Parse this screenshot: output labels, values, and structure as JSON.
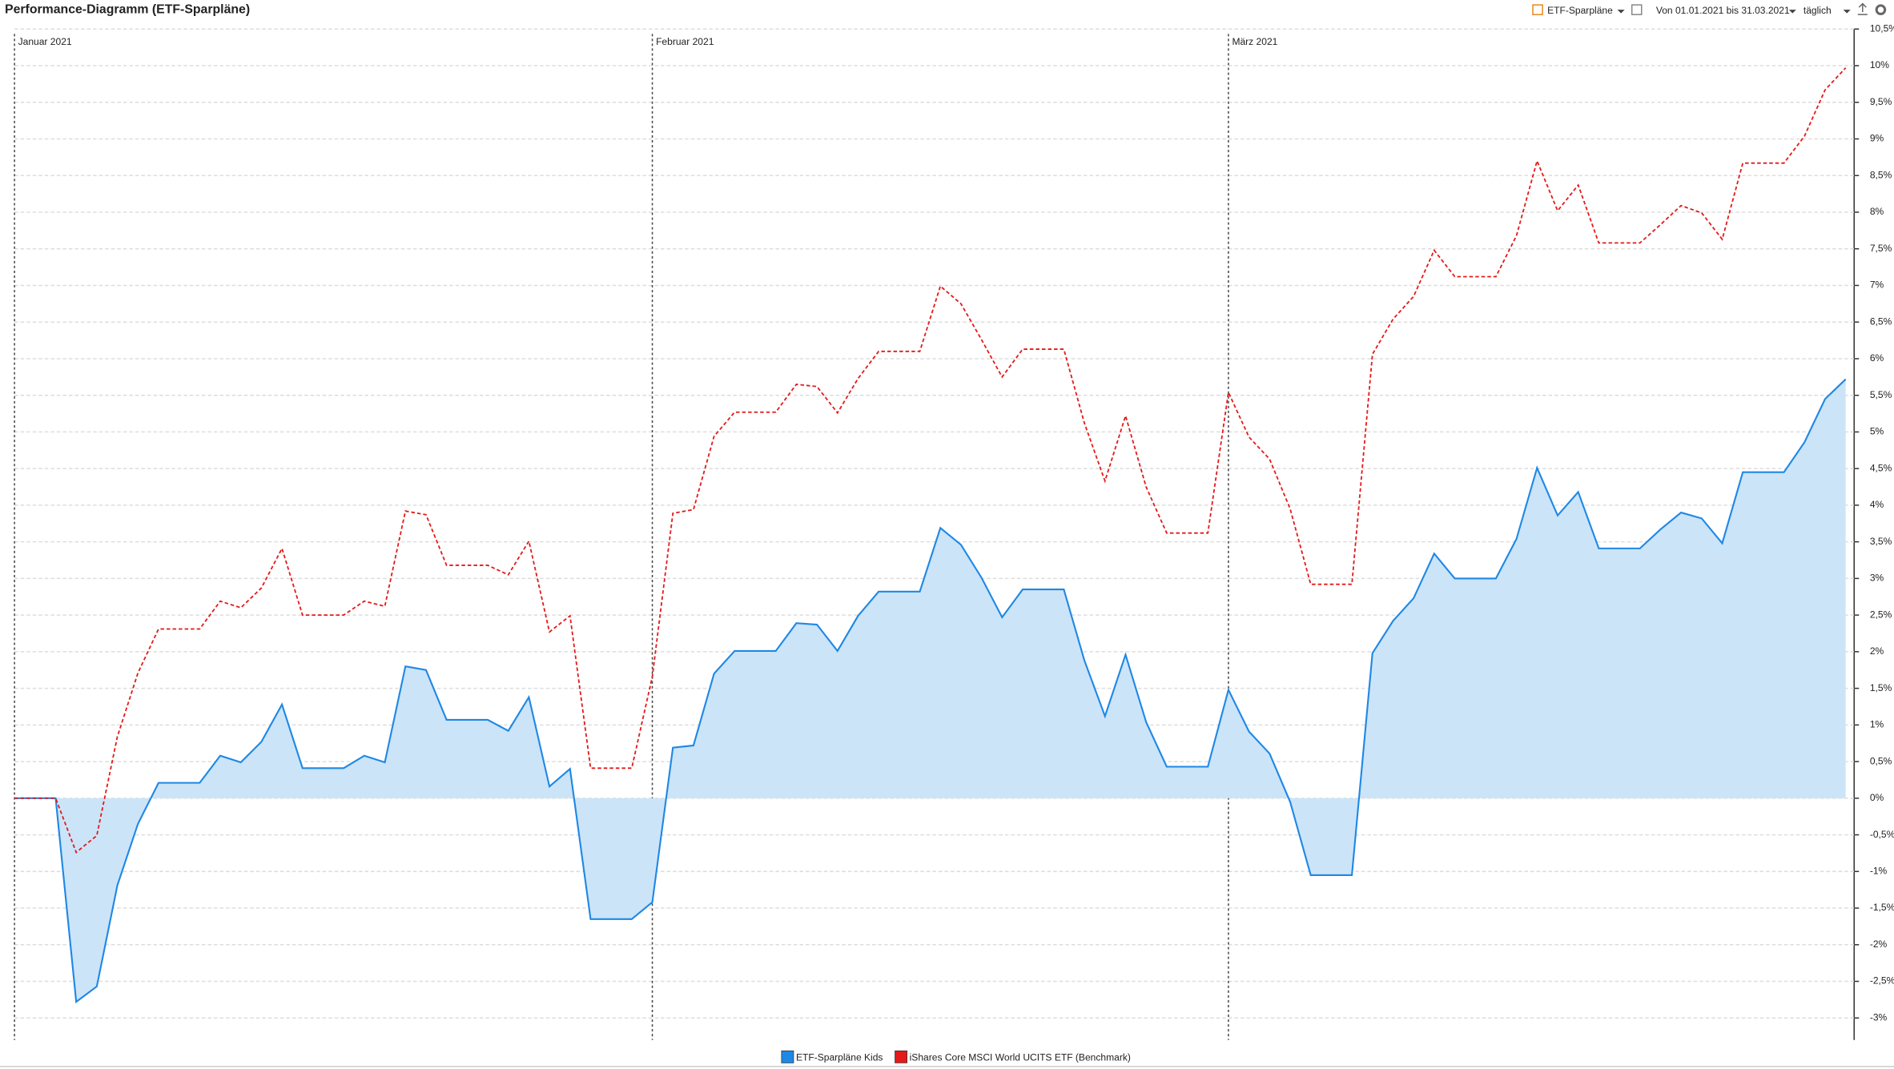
{
  "header": {
    "title": "Performance-Diagramm (ETF-Sparpläne)",
    "portfolio": "ETF-Sparpläne",
    "period": "Von 01.01.2021 bis 31.03.2021",
    "interval": "täglich"
  },
  "chart_data": {
    "type": "line",
    "categories": [
      "Januar 2021",
      null,
      null,
      null,
      null,
      null,
      null,
      null,
      null,
      null,
      null,
      null,
      null,
      null,
      null,
      null,
      null,
      null,
      null,
      null,
      null,
      null,
      null,
      null,
      null,
      null,
      null,
      null,
      null,
      null,
      null,
      "Februar 2021",
      null,
      null,
      null,
      null,
      null,
      null,
      null,
      null,
      null,
      null,
      null,
      null,
      null,
      null,
      null,
      null,
      null,
      null,
      null,
      null,
      null,
      null,
      null,
      null,
      null,
      null,
      null,
      "März 2021",
      null,
      null,
      null,
      null,
      null,
      null,
      null,
      null,
      null,
      null,
      null,
      null,
      null,
      null,
      null,
      null,
      null,
      null,
      null,
      null,
      null,
      null,
      null,
      null,
      null,
      null,
      null,
      null,
      null,
      null
    ],
    "series": [
      {
        "name": "ETF-Sparpläne Kids",
        "color": "#1e88e5",
        "fill": "#cce4f8",
        "dashed": false,
        "values": [
          0,
          0,
          0,
          -2.78,
          -2.57,
          -1.19,
          -0.35,
          0.21,
          0.21,
          0.21,
          0.58,
          0.49,
          0.77,
          1.28,
          0.41,
          0.41,
          0.41,
          0.58,
          0.49,
          1.8,
          1.75,
          1.07,
          1.07,
          1.07,
          0.92,
          1.38,
          0.16,
          0.4,
          -1.65,
          -1.65,
          -1.65,
          -1.42,
          0.69,
          0.72,
          1.7,
          2.01,
          2.01,
          2.01,
          2.39,
          2.37,
          2.01,
          2.49,
          2.82,
          2.82,
          2.82,
          3.69,
          3.46,
          3.01,
          2.47,
          2.85,
          2.85,
          2.85,
          1.88,
          1.12,
          1.96,
          1.04,
          0.43,
          0.43,
          0.43,
          1.48,
          0.91,
          0.61,
          -0.05,
          -1.05,
          -1.05,
          -1.05,
          1.98,
          2.42,
          2.73,
          3.34,
          3.0,
          3.0,
          3.0,
          3.54,
          4.51,
          3.86,
          4.18,
          3.41,
          3.41,
          3.41,
          3.67,
          3.9,
          3.82,
          3.48,
          4.45,
          4.45,
          4.45,
          4.86,
          5.45,
          5.72
        ]
      },
      {
        "name": "iShares Core MSCI World UCITS ETF (Benchmark)",
        "color": "#e31a1a",
        "dashed": true,
        "values": [
          0,
          0,
          0,
          -0.74,
          -0.51,
          0.84,
          1.71,
          2.31,
          2.31,
          2.31,
          2.69,
          2.6,
          2.87,
          3.41,
          2.5,
          2.5,
          2.5,
          2.69,
          2.62,
          3.92,
          3.87,
          3.18,
          3.18,
          3.18,
          3.05,
          3.51,
          2.27,
          2.49,
          0.41,
          0.41,
          0.41,
          1.66,
          3.89,
          3.94,
          4.94,
          5.27,
          5.27,
          5.27,
          5.65,
          5.62,
          5.26,
          5.73,
          6.1,
          6.1,
          6.1,
          6.99,
          6.75,
          6.26,
          5.75,
          6.13,
          6.13,
          6.13,
          5.12,
          4.33,
          5.22,
          4.25,
          3.62,
          3.62,
          3.62,
          5.54,
          4.93,
          4.63,
          3.95,
          2.92,
          2.92,
          2.92,
          6.06,
          6.54,
          6.85,
          7.48,
          7.12,
          7.12,
          7.12,
          7.68,
          8.7,
          8.02,
          8.37,
          7.58,
          7.58,
          7.58,
          7.83,
          8.09,
          7.99,
          7.63,
          8.67,
          8.67,
          8.67,
          9.04,
          9.67,
          9.97
        ]
      }
    ],
    "ylim": [
      -3.3,
      10.5
    ],
    "yticks": [
      {
        "value": -3,
        "label": "-3%"
      },
      {
        "value": -2.5,
        "label": "-2,5%"
      },
      {
        "value": -2,
        "label": "-2%"
      },
      {
        "value": -1.5,
        "label": "-1,5%"
      },
      {
        "value": -1,
        "label": "-1%"
      },
      {
        "value": -0.5,
        "label": "-0,5%"
      },
      {
        "value": 0,
        "label": "0%"
      },
      {
        "value": 0.5,
        "label": "0,5%"
      },
      {
        "value": 1,
        "label": "1%"
      },
      {
        "value": 1.5,
        "label": "1,5%"
      },
      {
        "value": 2,
        "label": "2%"
      },
      {
        "value": 2.5,
        "label": "2,5%"
      },
      {
        "value": 3,
        "label": "3%"
      },
      {
        "value": 3.5,
        "label": "3,5%"
      },
      {
        "value": 4,
        "label": "4%"
      },
      {
        "value": 4.5,
        "label": "4,5%"
      },
      {
        "value": 5,
        "label": "5%"
      },
      {
        "value": 5.5,
        "label": "5,5%"
      },
      {
        "value": 6,
        "label": "6%"
      },
      {
        "value": 6.5,
        "label": "6,5%"
      },
      {
        "value": 7,
        "label": "7%"
      },
      {
        "value": 7.5,
        "label": "7,5%"
      },
      {
        "value": 8,
        "label": "8%"
      },
      {
        "value": 8.5,
        "label": "8,5%"
      },
      {
        "value": 9,
        "label": "9%"
      },
      {
        "value": 9.5,
        "label": "9,5%"
      },
      {
        "value": 10,
        "label": "10%"
      },
      {
        "value": 10.5,
        "label": "10,5%"
      }
    ],
    "grid": true,
    "y_axis_side": "right",
    "legend": "bottom"
  }
}
